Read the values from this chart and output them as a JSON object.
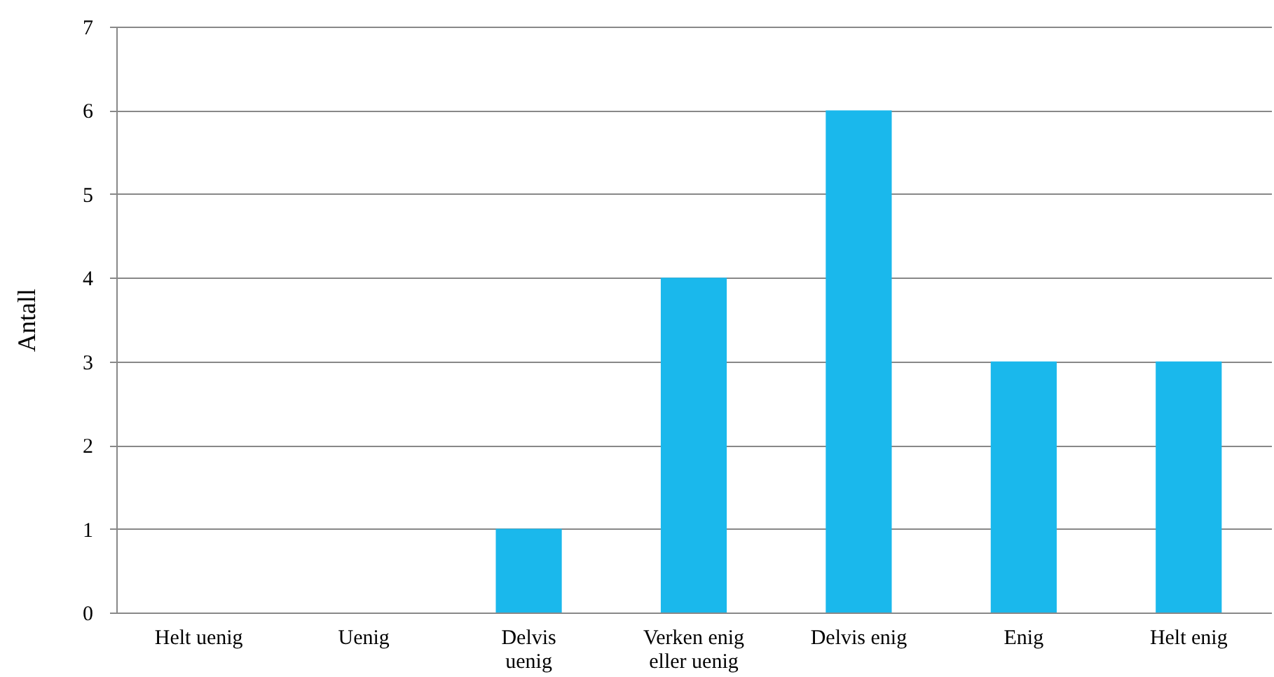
{
  "chart_data": {
    "type": "bar",
    "ylabel": "Antall",
    "categories": [
      "Helt uenig",
      "Uenig",
      "Delvis\nuenig",
      "Verken enig\neller uenig",
      "Delvis enig",
      "Enig",
      "Helt enig"
    ],
    "values": [
      0,
      0,
      1,
      4,
      6,
      3,
      3
    ],
    "color": "#1ab8ec",
    "ylim": [
      0,
      7
    ],
    "yticks": [
      0,
      1,
      2,
      3,
      4,
      5,
      6,
      7
    ],
    "grid": "y"
  }
}
